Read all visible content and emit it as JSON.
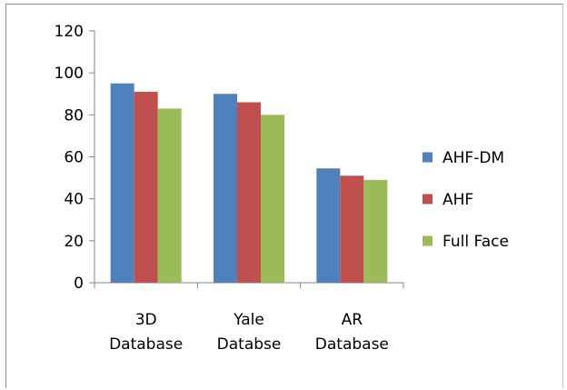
{
  "chart_data": {
    "type": "bar",
    "categories": [
      [
        "3D",
        "Database"
      ],
      [
        "Yale",
        "Databse"
      ],
      [
        "AR",
        "Database"
      ]
    ],
    "series": [
      {
        "name": "AHF-DM",
        "color": "#4f81bd",
        "values": [
          95,
          90,
          54.5
        ]
      },
      {
        "name": "AHF",
        "color": "#c0504d",
        "values": [
          91,
          86,
          51
        ]
      },
      {
        "name": "Full Face",
        "color": "#9bbb59",
        "values": [
          83,
          80,
          49
        ]
      }
    ],
    "ylim": [
      0,
      120
    ],
    "yticks": [
      0,
      20,
      40,
      60,
      80,
      100,
      120
    ],
    "grid": false,
    "legend_position": "right"
  }
}
